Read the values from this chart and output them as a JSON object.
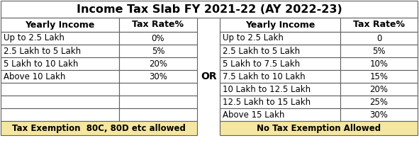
{
  "title": "Income Tax Slab FY 2021-22 (AY 2022-23)",
  "title_fontsize": 11.5,
  "left_headers": [
    "Yearly Income",
    "Tax Rate%"
  ],
  "left_rows": [
    [
      "Up to 2.5 Lakh",
      "0%"
    ],
    [
      "2.5 Lakh to 5 Lakh",
      "5%"
    ],
    [
      "5 Lakh to 10 Lakh",
      "20%"
    ],
    [
      "Above 10 Lakh",
      "30%"
    ]
  ],
  "left_footer": "Tax Exemption  80C, 80D etc allowed",
  "right_headers": [
    "Yearly Income",
    "Tax Rate%"
  ],
  "right_rows": [
    [
      "Up to 2.5 Lakh",
      "0"
    ],
    [
      "2.5 Lakh to 5 Lakh",
      "5%"
    ],
    [
      "5 Lakh to 7.5 Lakh",
      "10%"
    ],
    [
      "7.5 Lakh to 10 Lakh",
      "15%"
    ],
    [
      "10 Lakh to 12.5 Lakh",
      "20%"
    ],
    [
      "12.5 Lakh to 15 Lakh",
      "25%"
    ],
    [
      "Above 15 Lakh",
      "30%"
    ]
  ],
  "right_footer": "No Tax Exemption Allowed",
  "or_label": "OR",
  "bg_color": "#ffffff",
  "footer_bg": "#f5e6a0",
  "border_color": "#606060",
  "text_color": "#000000",
  "header_fontsize": 9.0,
  "cell_fontsize": 8.5,
  "footer_fontsize": 8.5,
  "lw": 0.8
}
